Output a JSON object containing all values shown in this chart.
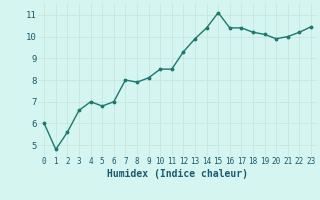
{
  "x": [
    0,
    1,
    2,
    3,
    4,
    5,
    6,
    7,
    8,
    9,
    10,
    11,
    12,
    13,
    14,
    15,
    16,
    17,
    18,
    19,
    20,
    21,
    22,
    23
  ],
  "y": [
    6.0,
    4.8,
    5.6,
    6.6,
    7.0,
    6.8,
    7.0,
    8.0,
    7.9,
    8.1,
    8.5,
    8.5,
    9.3,
    9.9,
    10.4,
    11.1,
    10.4,
    10.4,
    10.2,
    10.1,
    9.9,
    10.0,
    10.2,
    10.45
  ],
  "xlabel": "Humidex (Indice chaleur)",
  "xlim": [
    -0.5,
    23.5
  ],
  "ylim": [
    4.5,
    11.5
  ],
  "yticks": [
    5,
    6,
    7,
    8,
    9,
    10,
    11
  ],
  "xticks": [
    0,
    1,
    2,
    3,
    4,
    5,
    6,
    7,
    8,
    9,
    10,
    11,
    12,
    13,
    14,
    15,
    16,
    17,
    18,
    19,
    20,
    21,
    22,
    23
  ],
  "line_color": "#1a7a6e",
  "marker_color": "#1a7a6e",
  "bg_color": "#d5f5f0",
  "grid_color": "#c8e8e0",
  "axis_label_color": "#1a5a6e",
  "tick_label_color": "#1a5a6e",
  "xlabel_fontsize": 7.0,
  "xtick_fontsize": 5.5,
  "ytick_fontsize": 6.5
}
